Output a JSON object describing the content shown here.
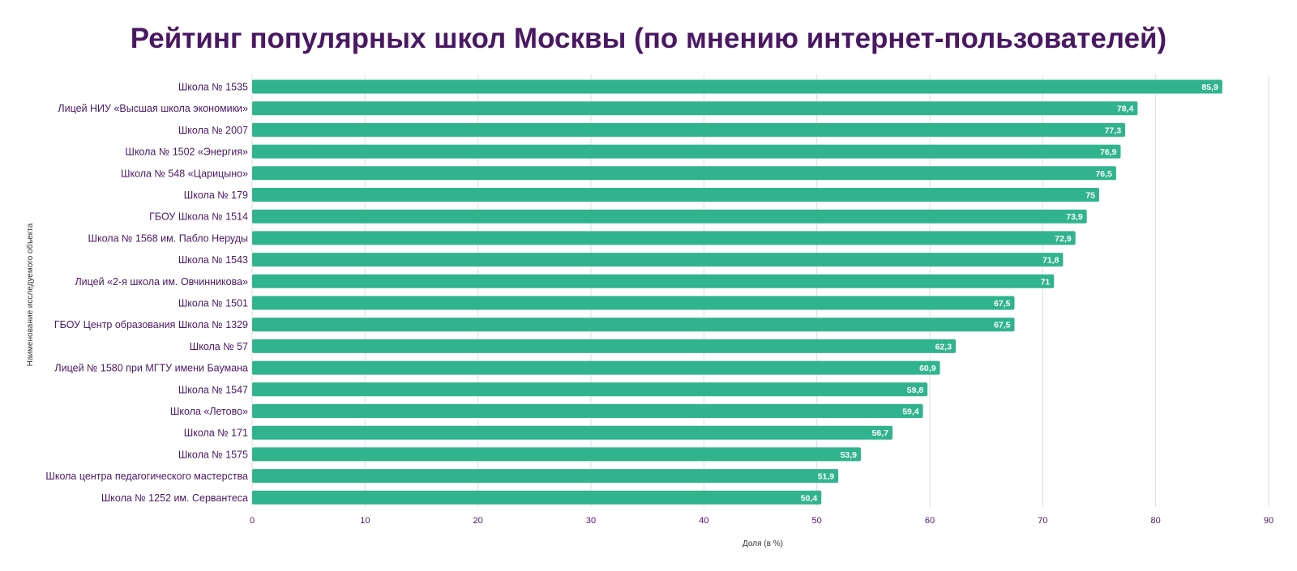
{
  "title": "Рейтинг популярных школ Москвы (по мнению интернет-пользователей)",
  "colors": {
    "bar": "#31b48d",
    "title": "#4a1863",
    "grid": "#dcdcdc"
  },
  "chart_data": {
    "type": "bar",
    "orientation": "horizontal",
    "title": "Рейтинг популярных школ Москвы (по мнению интернет-пользователей)",
    "xlabel": "Доля (в %)",
    "ylabel": "Наименование исследуемого объекта",
    "xlim": [
      0,
      90
    ],
    "xticks": [
      0,
      10,
      20,
      30,
      40,
      50,
      60,
      70,
      80,
      90
    ],
    "grid": true,
    "categories": [
      "Школа № 1535",
      "Лицей НИУ «Высшая школа экономики»",
      "Школа № 2007",
      "Школа № 1502 «Энергия»",
      "Школа № 548 «Царицыно»",
      "Школа № 179",
      "ГБОУ Школа № 1514",
      "Школа № 1568 им. Пабло Неруды",
      "Школа № 1543",
      "Лицей «2-я школа им. Овчинникова»",
      "Школа № 1501",
      "ГБОУ Центр образования Школа № 1329",
      "Школа № 57",
      "Лицей № 1580 при МГТУ имени Баумана",
      "Школа № 1547",
      "Школа «Летово»",
      "Школа № 171",
      "Школа № 1575",
      "Школа центра педагогического мастерства",
      "Школа № 1252 им. Сервантеса"
    ],
    "values": [
      85.9,
      78.4,
      77.3,
      76.9,
      76.5,
      75,
      73.9,
      72.9,
      71.8,
      71,
      67.5,
      67.5,
      62.3,
      60.9,
      59.8,
      59.4,
      56.7,
      53.9,
      51.9,
      50.4
    ],
    "value_labels": [
      "85,9",
      "78,4",
      "77,3",
      "76,9",
      "76,5",
      "75",
      "73,9",
      "72,9",
      "71,8",
      "71",
      "67,5",
      "67,5",
      "62,3",
      "60,9",
      "59,8",
      "59,4",
      "56,7",
      "53,9",
      "51,9",
      "50,4"
    ]
  }
}
